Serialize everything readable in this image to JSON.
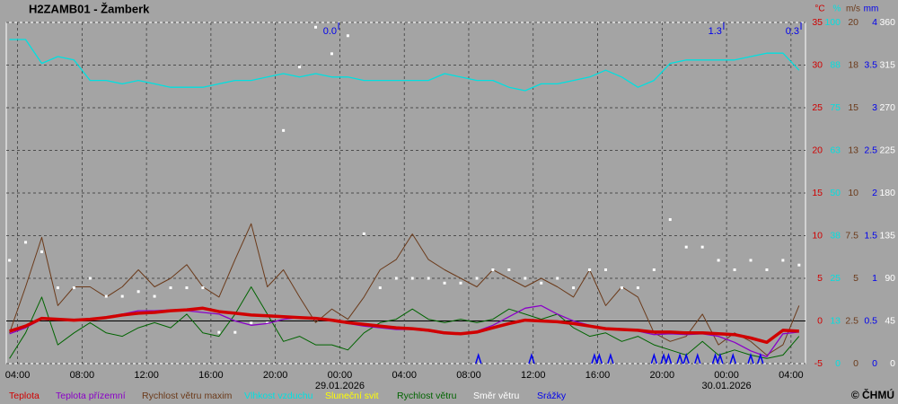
{
  "chart_data": {
    "type": "meteo",
    "title": "H2ZAMB01 - Žamberk",
    "credit": "© ČHMÚ",
    "grid": true,
    "zero_line": true,
    "xlim": [
      -0.7,
      48.9
    ],
    "xticks": [
      {
        "value": 0,
        "label": "04:00"
      },
      {
        "value": 4,
        "label": "08:00"
      },
      {
        "value": 8,
        "label": "12:00"
      },
      {
        "value": 12,
        "label": "16:00"
      },
      {
        "value": 16,
        "label": "20:00"
      },
      {
        "value": 20,
        "label": "00:00"
      },
      {
        "value": 24,
        "label": "04:00"
      },
      {
        "value": 28,
        "label": "08:00"
      },
      {
        "value": 32,
        "label": "12:00"
      },
      {
        "value": 36,
        "label": "16:00"
      },
      {
        "value": 40,
        "label": "20:00"
      },
      {
        "value": 44,
        "label": "00:00"
      },
      {
        "value": 48,
        "label": "04:00"
      }
    ],
    "date_labels": [
      {
        "x": 20,
        "text": "29.01.2026"
      },
      {
        "x": 44,
        "text": "30.01.2026"
      }
    ],
    "precip_sums": [
      {
        "x": 19.7,
        "text": "0.0"
      },
      {
        "x": 43.6,
        "text": "1.3"
      },
      {
        "x": 48.4,
        "text": "0.3"
      }
    ],
    "axes": [
      {
        "unit": "°C",
        "color": "#d00000",
        "ylim": [
          -5,
          35
        ],
        "yticks": [
          -5,
          0,
          5,
          10,
          15,
          20,
          25,
          30,
          35
        ]
      },
      {
        "unit": "%",
        "color": "#00e0e0",
        "ylim": [
          0,
          100
        ],
        "yticks": [
          0,
          {
            "value": 12.5,
            "label": "13"
          },
          25,
          {
            "value": 37.5,
            "label": "38"
          },
          50,
          {
            "value": 62.5,
            "label": "63"
          },
          75,
          {
            "value": 87.5,
            "label": "88"
          },
          100
        ]
      },
      {
        "unit": "m/s",
        "color": "#6b3a1a",
        "ylim": [
          0,
          20
        ],
        "yticks": [
          0,
          2.5,
          5,
          7.5,
          10,
          {
            "value": 12.5,
            "label": "13"
          },
          15,
          {
            "value": 17.5,
            "label": "18"
          },
          20
        ]
      },
      {
        "unit": "mm",
        "color": "#0000ee",
        "ylim": [
          0,
          4
        ],
        "yticks": [
          0,
          0.5,
          1,
          1.5,
          2,
          2.5,
          3,
          3.5,
          4
        ]
      },
      {
        "color": "#ffffff",
        "ylim": [
          0,
          360
        ],
        "yticks": [
          0,
          45,
          90,
          135,
          180,
          225,
          270,
          315,
          360
        ]
      }
    ],
    "x": [
      -0.5,
      0.5,
      1.5,
      2.5,
      3.5,
      4.5,
      5.5,
      6.5,
      7.5,
      8.5,
      9.5,
      10.5,
      11.5,
      12.5,
      13.5,
      14.5,
      15.5,
      16.5,
      17.5,
      18.5,
      19.5,
      20.5,
      21.5,
      22.5,
      23.5,
      24.5,
      25.5,
      26.5,
      27.5,
      28.5,
      29.5,
      30.5,
      31.5,
      32.5,
      33.5,
      34.5,
      35.5,
      36.5,
      37.5,
      38.5,
      39.5,
      40.5,
      41.5,
      42.5,
      43.5,
      44.5,
      45.5,
      46.5,
      47.5,
      48.5
    ],
    "series": [
      {
        "name": "Rychlost větru maxim",
        "color": "#6b3a1a",
        "axis": 2,
        "style": "line",
        "width": 1,
        "values": [
          1.8,
          4.5,
          7.4,
          3.4,
          4.5,
          4.5,
          3.9,
          4.5,
          5.5,
          4.5,
          5.0,
          5.8,
          4.5,
          3.9,
          6.1,
          8.2,
          4.5,
          5.5,
          3.9,
          2.4,
          3.2,
          2.6,
          3.9,
          5.5,
          6.1,
          7.6,
          6.1,
          5.5,
          5.0,
          4.5,
          5.5,
          5.0,
          4.5,
          5.0,
          4.5,
          3.9,
          5.5,
          3.4,
          4.5,
          3.9,
          1.8,
          1.3,
          1.6,
          2.9,
          1.1,
          1.8,
          1.3,
          0.5,
          1.1,
          3.4
        ]
      },
      {
        "name": "Rychlost větru",
        "color": "#006400",
        "axis": 2,
        "style": "line",
        "width": 1,
        "values": [
          0.3,
          1.8,
          3.9,
          1.1,
          1.8,
          2.4,
          1.8,
          1.6,
          2.1,
          2.4,
          2.1,
          2.9,
          1.8,
          1.6,
          2.9,
          4.5,
          2.9,
          1.3,
          1.6,
          1.1,
          1.1,
          0.8,
          1.8,
          2.4,
          2.6,
          3.2,
          2.6,
          2.4,
          2.6,
          2.4,
          2.6,
          3.2,
          2.9,
          2.6,
          2.9,
          2.1,
          1.6,
          1.8,
          1.3,
          1.6,
          1.1,
          0.8,
          0.5,
          1.3,
          0.5,
          0.8,
          0.5,
          0.3,
          0.5,
          1.6
        ]
      },
      {
        "name": "Směr větru",
        "color": "#ffffff",
        "axis": 4,
        "style": "points",
        "values": [
          109,
          128,
          118,
          80,
          80,
          90,
          71,
          71,
          76,
          71,
          80,
          80,
          80,
          33,
          33,
          43,
          43,
          246,
          313,
          355,
          327,
          346,
          137,
          80,
          90,
          90,
          90,
          85,
          85,
          90,
          99,
          99,
          90,
          85,
          90,
          80,
          99,
          99,
          80,
          80,
          99,
          152,
          123,
          123,
          109,
          99,
          109,
          99,
          109,
          104
        ]
      },
      {
        "name": "Vlhkost vzduchu",
        "color": "#00e0e0",
        "axis": 1,
        "style": "line",
        "width": 1.3,
        "values": [
          95,
          95,
          88,
          90,
          89,
          83,
          83,
          82,
          83,
          82,
          81,
          81,
          81,
          82,
          83,
          83,
          84,
          85,
          84,
          85,
          84,
          84,
          83,
          83,
          83,
          83,
          83,
          85,
          84,
          83,
          83,
          81,
          80,
          82,
          82,
          83,
          84,
          86,
          84,
          81,
          83,
          88,
          89,
          89,
          89,
          89,
          90,
          91,
          91,
          86
        ]
      },
      {
        "name": "Teplota přízemní",
        "color": "#8a00c8",
        "axis": 0,
        "style": "line",
        "width": 1.3,
        "values": [
          -1.5,
          -0.8,
          0.2,
          0.1,
          0.0,
          0.2,
          0.5,
          0.8,
          1.2,
          1.2,
          1.3,
          1.2,
          1.0,
          0.8,
          0.0,
          -0.5,
          -0.3,
          0.2,
          0.4,
          0.2,
          0.0,
          -0.3,
          -0.6,
          -0.8,
          -1.0,
          -1.0,
          -1.2,
          -1.5,
          -1.5,
          -1.2,
          -0.5,
          0.5,
          1.5,
          1.8,
          0.8,
          0.0,
          -0.5,
          -1.0,
          -1.0,
          -1.2,
          -1.6,
          -1.5,
          -1.6,
          -1.5,
          -1.8,
          -2.5,
          -3.5,
          -4.2,
          -1.5,
          -1.3
        ]
      },
      {
        "name": "Teplota",
        "color": "#d00000",
        "axis": 0,
        "style": "line",
        "width": 3.5,
        "values": [
          -1.2,
          -0.6,
          0.3,
          0.2,
          0.1,
          0.2,
          0.4,
          0.7,
          0.9,
          1.0,
          1.2,
          1.3,
          1.5,
          1.1,
          0.9,
          0.7,
          0.6,
          0.5,
          0.4,
          0.3,
          0.1,
          -0.2,
          -0.4,
          -0.6,
          -0.8,
          -0.9,
          -1.1,
          -1.4,
          -1.5,
          -1.3,
          -0.8,
          -0.3,
          0.1,
          0.0,
          -0.1,
          -0.3,
          -0.6,
          -0.9,
          -1.0,
          -1.1,
          -1.3,
          -1.3,
          -1.4,
          -1.4,
          -1.5,
          -1.6,
          -2.0,
          -2.5,
          -1.1,
          -1.2
        ]
      },
      {
        "name": "Sluneční svit",
        "color": "#ffff00",
        "axis": 0,
        "style": "none"
      },
      {
        "name": "Srážky",
        "color": "#0000ee",
        "axis": 3,
        "style": "markers",
        "x": [
          28.6,
          31.9,
          35.8,
          36.1,
          36.8,
          39.5,
          40.1,
          40.4,
          41.1,
          41.5,
          42.2,
          43.3,
          43.6,
          44.4,
          45.5,
          46.1
        ],
        "values": [
          0.1,
          0.1,
          0.1,
          0.1,
          0.1,
          0.1,
          0.1,
          0.1,
          0.1,
          0.1,
          0.1,
          0.1,
          0.1,
          0.1,
          0.1,
          0.1
        ]
      }
    ],
    "legend_order": [
      5,
      4,
      0,
      3,
      6,
      1,
      2,
      7
    ]
  }
}
